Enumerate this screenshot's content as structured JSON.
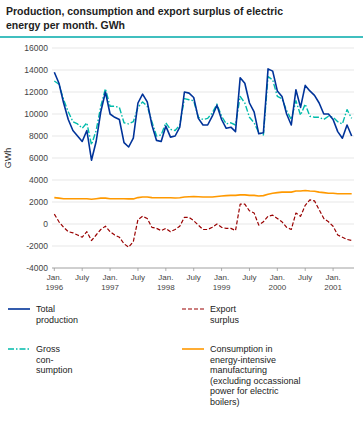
{
  "chart_data": {
    "type": "line",
    "title": "Production, consumption and export surplus of electric",
    "subtitle": "energy per month. GWh",
    "y_label": "GWh",
    "ylim": [
      -4000,
      16000
    ],
    "yticks": [
      -4000,
      -2000,
      0,
      2000,
      4000,
      6000,
      8000,
      10000,
      12000,
      14000,
      16000
    ],
    "grid": true,
    "categories": [
      "Jan.\n1996",
      null,
      null,
      null,
      null,
      null,
      "July",
      null,
      null,
      null,
      null,
      null,
      "Jan.\n1997",
      null,
      null,
      null,
      null,
      null,
      "July",
      null,
      null,
      null,
      null,
      null,
      "Jan.\n1998",
      null,
      null,
      null,
      null,
      null,
      "July",
      null,
      null,
      null,
      null,
      null,
      "Jan.\n1999",
      null,
      null,
      null,
      null,
      null,
      "July",
      null,
      null,
      null,
      null,
      null,
      "Jan.\n2000",
      null,
      null,
      null,
      null,
      null,
      "July",
      null,
      null,
      null,
      null,
      null,
      "Jan.\n2001",
      null,
      null,
      null,
      null
    ],
    "series": [
      {
        "name": "Total\nproduction",
        "color": "#003399",
        "line_style": "solid",
        "values": [
          13800,
          12800,
          11000,
          9500,
          8500,
          8000,
          7500,
          8500,
          5800,
          7500,
          10200,
          12000,
          10000,
          9700,
          9500,
          7400,
          7000,
          7800,
          11000,
          11800,
          11100,
          9000,
          7600,
          7500,
          8900,
          7900,
          8000,
          8800,
          12000,
          11900,
          11500,
          9600,
          9000,
          9000,
          9800,
          10800,
          9500,
          8700,
          8800,
          8400,
          13300,
          12800,
          11000,
          10200,
          8200,
          8300,
          14100,
          13900,
          12100,
          11600,
          10000,
          9000,
          12200,
          10600,
          12600,
          12100,
          11700,
          11000,
          10000,
          10000,
          9500,
          8400,
          7800,
          9000,
          8000
        ]
      },
      {
        "name": "Export\nsurplus",
        "color": "#990000",
        "line_style": "dashed",
        "values": [
          900,
          200,
          -300,
          -700,
          -800,
          -1000,
          -1200,
          -700,
          -1500,
          -1000,
          -500,
          -200,
          -700,
          -1000,
          -1200,
          -1800,
          -2100,
          -1600,
          400,
          700,
          500,
          -300,
          -400,
          -600,
          -400,
          -700,
          -500,
          -200,
          600,
          600,
          300,
          -100,
          -500,
          -500,
          -300,
          0,
          -300,
          -400,
          -400,
          -600,
          1800,
          1800,
          1200,
          1000,
          -100,
          200,
          700,
          800,
          500,
          200,
          -300,
          -500,
          1000,
          700,
          1700,
          2200,
          2100,
          1300,
          500,
          200,
          -200,
          -1000,
          -1200,
          -1400,
          -1500
        ]
      },
      {
        "name": "Gross\ncon-\nsumption",
        "color": "#00bbaa",
        "line_style": "dashdot",
        "values": [
          13000,
          12700,
          11300,
          10200,
          9300,
          9100,
          8700,
          9200,
          7200,
          8500,
          10700,
          12300,
          10700,
          10700,
          10600,
          9200,
          9100,
          9300,
          10600,
          11100,
          10700,
          9300,
          8000,
          8100,
          9200,
          8600,
          8500,
          9000,
          11400,
          11300,
          11200,
          9700,
          9500,
          9600,
          10100,
          10900,
          9800,
          9100,
          9200,
          9000,
          11600,
          11000,
          9700,
          9200,
          8300,
          8100,
          13400,
          13100,
          11600,
          11400,
          10300,
          9500,
          11200,
          9900,
          10900,
          9800,
          9700,
          9700,
          9500,
          9800,
          9700,
          9300,
          9100,
          10400,
          9600
        ]
      },
      {
        "name": "Consumption in\nenergy-intensive\nmanufacturing\n(excluding occassional\npower for electric\nboilers)",
        "color": "#ff9900",
        "line_style": "solid",
        "values": [
          2400,
          2350,
          2300,
          2300,
          2300,
          2300,
          2300,
          2300,
          2250,
          2300,
          2350,
          2350,
          2300,
          2300,
          2300,
          2300,
          2280,
          2280,
          2400,
          2450,
          2450,
          2400,
          2380,
          2380,
          2380,
          2380,
          2370,
          2380,
          2450,
          2480,
          2500,
          2480,
          2460,
          2460,
          2450,
          2500,
          2550,
          2580,
          2600,
          2600,
          2650,
          2650,
          2600,
          2600,
          2550,
          2580,
          2700,
          2800,
          2850,
          2900,
          2900,
          2900,
          3000,
          3000,
          3050,
          3000,
          2980,
          2900,
          2850,
          2800,
          2800,
          2750,
          2750,
          2750,
          2750
        ]
      }
    ]
  }
}
